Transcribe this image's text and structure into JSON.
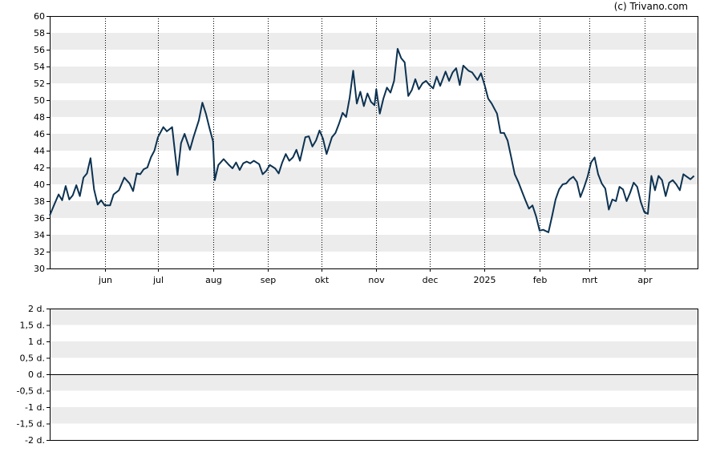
{
  "copyright": "(c) Trivano.com",
  "colors": {
    "line": "#0c3251",
    "band": "#ececec",
    "axis": "#000000"
  },
  "chart_data": [
    {
      "type": "line",
      "title": "",
      "xlabel": "",
      "ylabel": "",
      "ylim": [
        30,
        60
      ],
      "yticks": [
        "60",
        "58",
        "56",
        "54",
        "52",
        "50",
        "48",
        "46",
        "44",
        "42",
        "40",
        "38",
        "36",
        "34",
        "32",
        "30"
      ],
      "xlim": [
        "2024-05-01",
        "2025-05-01"
      ],
      "month_labels": [
        {
          "label": "jun",
          "date": "2024-06-01"
        },
        {
          "label": "jul",
          "date": "2024-07-01"
        },
        {
          "label": "aug",
          "date": "2024-08-01"
        },
        {
          "label": "sep",
          "date": "2024-09-01"
        },
        {
          "label": "okt",
          "date": "2024-10-01"
        },
        {
          "label": "nov",
          "date": "2024-11-01"
        },
        {
          "label": "dec",
          "date": "2024-12-01"
        },
        {
          "label": "2025",
          "date": "2025-01-01"
        },
        {
          "label": "feb",
          "date": "2025-02-01"
        },
        {
          "label": "mrt",
          "date": "2025-03-01"
        },
        {
          "label": "apr",
          "date": "2025-04-01"
        }
      ],
      "grid": "alternating horizontal bands, dotted vertical month lines",
      "series": [
        {
          "points": [
            [
              "2024-05-01",
              36.3
            ],
            [
              "2024-05-04",
              37.8
            ],
            [
              "2024-05-06",
              38.8
            ],
            [
              "2024-05-08",
              38.1
            ],
            [
              "2024-05-10",
              39.8
            ],
            [
              "2024-05-12",
              38.2
            ],
            [
              "2024-05-14",
              38.7
            ],
            [
              "2024-05-16",
              39.9
            ],
            [
              "2024-05-18",
              38.6
            ],
            [
              "2024-05-20",
              40.8
            ],
            [
              "2024-05-22",
              41.3
            ],
            [
              "2024-05-24",
              43.1
            ],
            [
              "2024-05-26",
              39.4
            ],
            [
              "2024-05-28",
              37.6
            ],
            [
              "2024-05-30",
              38.1
            ],
            [
              "2024-06-01",
              37.5
            ],
            [
              "2024-06-04",
              37.5
            ],
            [
              "2024-06-06",
              38.8
            ],
            [
              "2024-06-09",
              39.3
            ],
            [
              "2024-06-12",
              40.8
            ],
            [
              "2024-06-15",
              40.1
            ],
            [
              "2024-06-17",
              39.2
            ],
            [
              "2024-06-19",
              41.3
            ],
            [
              "2024-06-21",
              41.2
            ],
            [
              "2024-06-23",
              41.8
            ],
            [
              "2024-06-25",
              42.0
            ],
            [
              "2024-06-27",
              43.2
            ],
            [
              "2024-06-29",
              44.0
            ],
            [
              "2024-07-01",
              45.6
            ],
            [
              "2024-07-04",
              46.8
            ],
            [
              "2024-07-06",
              46.3
            ],
            [
              "2024-07-09",
              46.8
            ],
            [
              "2024-07-12",
              41.1
            ],
            [
              "2024-07-14",
              44.9
            ],
            [
              "2024-07-16",
              46.0
            ],
            [
              "2024-07-19",
              44.1
            ],
            [
              "2024-07-21",
              45.6
            ],
            [
              "2024-07-24",
              47.6
            ],
            [
              "2024-07-26",
              49.7
            ],
            [
              "2024-07-28",
              48.4
            ],
            [
              "2024-07-30",
              46.7
            ],
            [
              "2024-08-01",
              45.1
            ],
            [
              "2024-08-02",
              40.5
            ],
            [
              "2024-08-04",
              42.3
            ],
            [
              "2024-08-07",
              43.0
            ],
            [
              "2024-08-10",
              42.3
            ],
            [
              "2024-08-12",
              41.9
            ],
            [
              "2024-08-14",
              42.6
            ],
            [
              "2024-08-16",
              41.7
            ],
            [
              "2024-08-18",
              42.5
            ],
            [
              "2024-08-20",
              42.7
            ],
            [
              "2024-08-22",
              42.5
            ],
            [
              "2024-08-24",
              42.8
            ],
            [
              "2024-08-27",
              42.4
            ],
            [
              "2024-08-29",
              41.2
            ],
            [
              "2024-08-31",
              41.6
            ],
            [
              "2024-09-02",
              42.3
            ],
            [
              "2024-09-05",
              41.9
            ],
            [
              "2024-09-07",
              41.3
            ],
            [
              "2024-09-09",
              42.6
            ],
            [
              "2024-09-11",
              43.6
            ],
            [
              "2024-09-13",
              42.8
            ],
            [
              "2024-09-15",
              43.2
            ],
            [
              "2024-09-17",
              44.1
            ],
            [
              "2024-09-19",
              42.8
            ],
            [
              "2024-09-22",
              45.6
            ],
            [
              "2024-09-24",
              45.7
            ],
            [
              "2024-09-26",
              44.5
            ],
            [
              "2024-09-28",
              45.2
            ],
            [
              "2024-09-30",
              46.4
            ],
            [
              "2024-10-02",
              45.4
            ],
            [
              "2024-10-04",
              43.6
            ],
            [
              "2024-10-07",
              45.6
            ],
            [
              "2024-10-09",
              46.1
            ],
            [
              "2024-10-11",
              47.2
            ],
            [
              "2024-10-13",
              48.5
            ],
            [
              "2024-10-15",
              48.0
            ],
            [
              "2024-10-17",
              50.3
            ],
            [
              "2024-10-19",
              53.5
            ],
            [
              "2024-10-21",
              49.6
            ],
            [
              "2024-10-23",
              51.0
            ],
            [
              "2024-10-25",
              49.3
            ],
            [
              "2024-10-27",
              50.8
            ],
            [
              "2024-10-29",
              49.8
            ],
            [
              "2024-10-31",
              49.4
            ],
            [
              "2024-11-01",
              51.3
            ],
            [
              "2024-11-03",
              48.4
            ],
            [
              "2024-11-05",
              50.2
            ],
            [
              "2024-11-07",
              51.5
            ],
            [
              "2024-11-09",
              50.9
            ],
            [
              "2024-11-11",
              52.3
            ],
            [
              "2024-11-13",
              56.1
            ],
            [
              "2024-11-15",
              55.0
            ],
            [
              "2024-11-17",
              54.5
            ],
            [
              "2024-11-19",
              50.5
            ],
            [
              "2024-11-21",
              51.2
            ],
            [
              "2024-11-23",
              52.5
            ],
            [
              "2024-11-25",
              51.3
            ],
            [
              "2024-11-27",
              52.0
            ],
            [
              "2024-11-29",
              52.3
            ],
            [
              "2024-12-01",
              51.8
            ],
            [
              "2024-12-03",
              51.4
            ],
            [
              "2024-12-05",
              52.8
            ],
            [
              "2024-12-07",
              51.7
            ],
            [
              "2024-12-10",
              53.4
            ],
            [
              "2024-12-12",
              52.3
            ],
            [
              "2024-12-14",
              53.3
            ],
            [
              "2024-12-16",
              53.8
            ],
            [
              "2024-12-18",
              51.8
            ],
            [
              "2024-12-20",
              54.1
            ],
            [
              "2024-12-23",
              53.5
            ],
            [
              "2024-12-25",
              53.3
            ],
            [
              "2024-12-28",
              52.4
            ],
            [
              "2024-12-30",
              53.2
            ],
            [
              "2025-01-01",
              51.8
            ],
            [
              "2025-01-03",
              50.2
            ],
            [
              "2025-01-05",
              49.6
            ],
            [
              "2025-01-08",
              48.4
            ],
            [
              "2025-01-10",
              46.1
            ],
            [
              "2025-01-12",
              46.1
            ],
            [
              "2025-01-14",
              45.2
            ],
            [
              "2025-01-16",
              43.2
            ],
            [
              "2025-01-18",
              41.2
            ],
            [
              "2025-01-20",
              40.3
            ],
            [
              "2025-01-22",
              39.2
            ],
            [
              "2025-01-24",
              38.1
            ],
            [
              "2025-01-26",
              37.1
            ],
            [
              "2025-01-28",
              37.5
            ],
            [
              "2025-01-30",
              36.2
            ],
            [
              "2025-02-01",
              34.5
            ],
            [
              "2025-02-03",
              34.6
            ],
            [
              "2025-02-06",
              34.3
            ],
            [
              "2025-02-08",
              36.2
            ],
            [
              "2025-02-10",
              38.2
            ],
            [
              "2025-02-12",
              39.4
            ],
            [
              "2025-02-14",
              40.0
            ],
            [
              "2025-02-16",
              40.1
            ],
            [
              "2025-02-18",
              40.6
            ],
            [
              "2025-02-20",
              40.9
            ],
            [
              "2025-02-22",
              40.3
            ],
            [
              "2025-02-24",
              38.5
            ],
            [
              "2025-02-26",
              39.6
            ],
            [
              "2025-02-28",
              40.9
            ],
            [
              "2025-03-02",
              42.6
            ],
            [
              "2025-03-04",
              43.2
            ],
            [
              "2025-03-06",
              41.2
            ],
            [
              "2025-03-08",
              40.1
            ],
            [
              "2025-03-10",
              39.5
            ],
            [
              "2025-03-12",
              37.0
            ],
            [
              "2025-03-14",
              38.2
            ],
            [
              "2025-03-16",
              38.0
            ],
            [
              "2025-03-18",
              39.7
            ],
            [
              "2025-03-20",
              39.4
            ],
            [
              "2025-03-22",
              38.0
            ],
            [
              "2025-03-24",
              39.0
            ],
            [
              "2025-03-26",
              40.2
            ],
            [
              "2025-03-28",
              39.7
            ],
            [
              "2025-03-30",
              37.9
            ],
            [
              "2025-04-01",
              36.7
            ],
            [
              "2025-04-03",
              36.5
            ],
            [
              "2025-04-05",
              41.0
            ],
            [
              "2025-04-07",
              39.3
            ],
            [
              "2025-04-09",
              41.0
            ],
            [
              "2025-04-11",
              40.5
            ],
            [
              "2025-04-13",
              38.6
            ],
            [
              "2025-04-15",
              40.2
            ],
            [
              "2025-04-17",
              40.5
            ],
            [
              "2025-04-19",
              40.0
            ],
            [
              "2025-04-21",
              39.3
            ],
            [
              "2025-04-23",
              41.2
            ],
            [
              "2025-04-25",
              40.9
            ],
            [
              "2025-04-27",
              40.6
            ],
            [
              "2025-04-29",
              41.0
            ]
          ]
        }
      ]
    },
    {
      "type": "line",
      "title": "",
      "ylim": [
        -2,
        2
      ],
      "yticks": [
        "2 d.",
        "1,5 d.",
        "1 d.",
        "0,5 d.",
        "0 d.",
        "-0,5 d.",
        "-1 d.",
        "-1,5 d.",
        "-2 d."
      ],
      "zero_line": true,
      "series": []
    }
  ]
}
